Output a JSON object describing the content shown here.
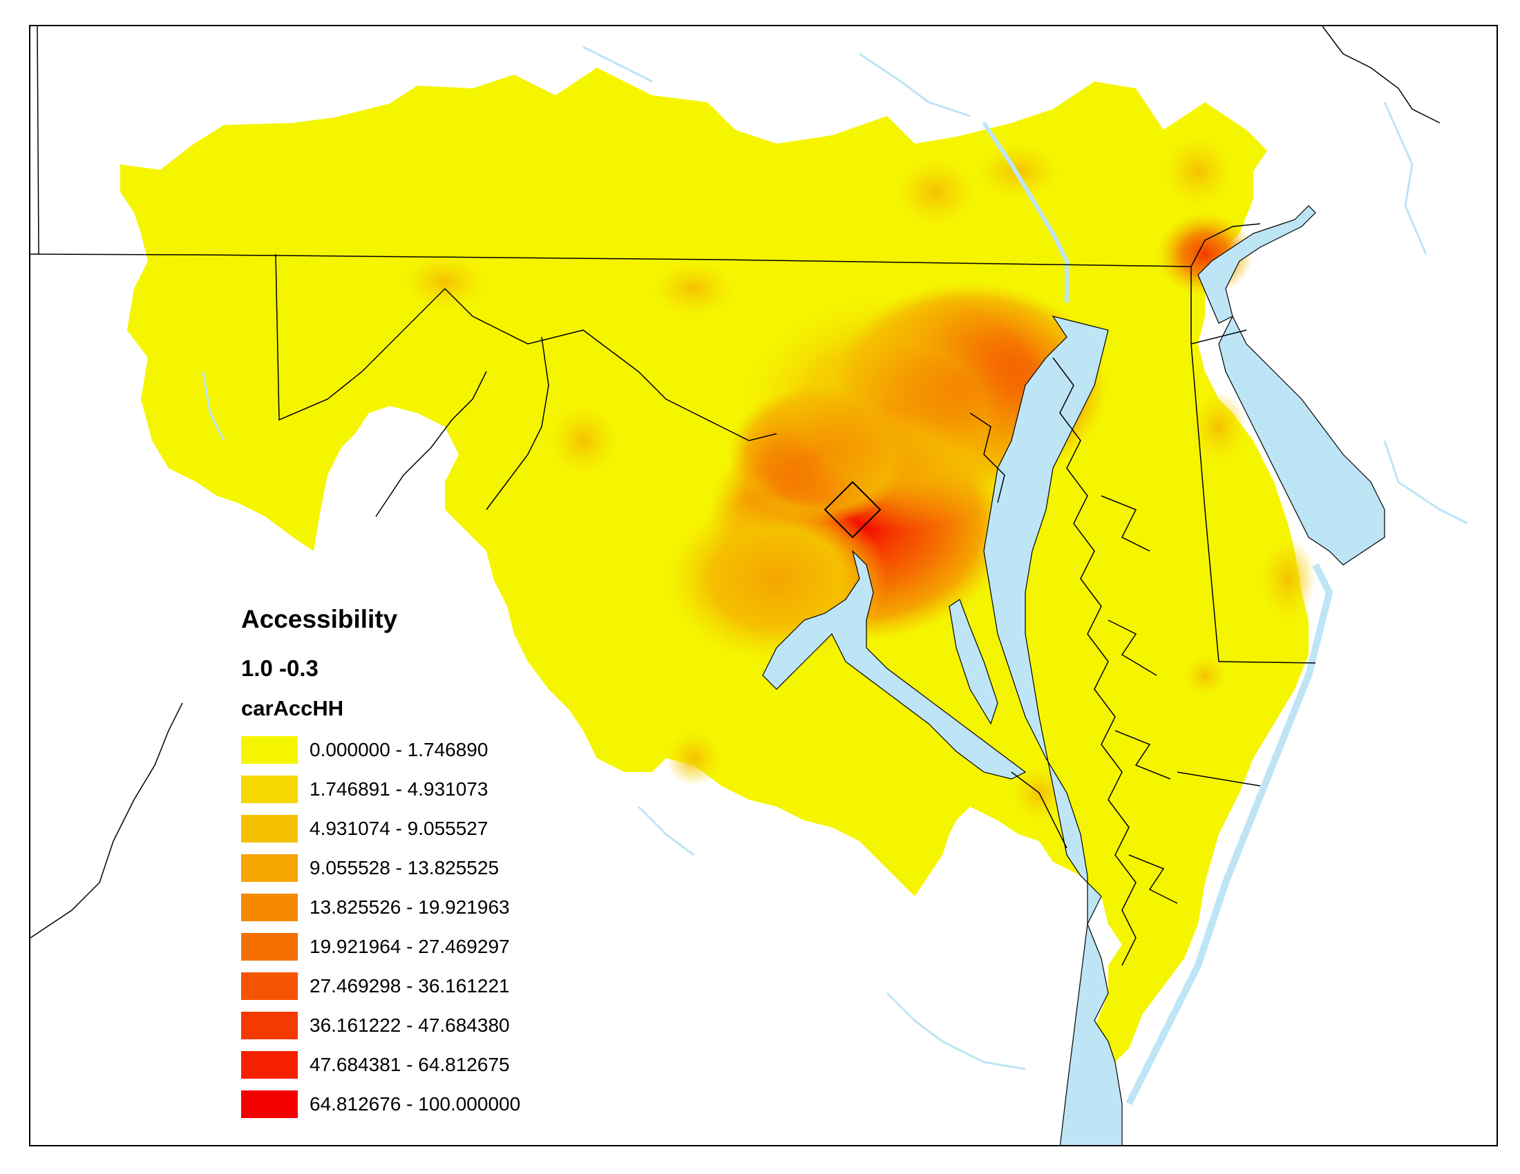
{
  "legend": {
    "title": "Accessibility",
    "subtitle": "1.0 -0.3",
    "field": "carAccHH",
    "classes": [
      {
        "label": "0.000000 - 1.746890",
        "color": "#f5f500"
      },
      {
        "label": "1.746891 - 4.931073",
        "color": "#f5d800"
      },
      {
        "label": "4.931074 - 9.055527",
        "color": "#f5c000"
      },
      {
        "label": "9.055528 - 13.825525",
        "color": "#f5a500"
      },
      {
        "label": "13.825526 - 19.921963",
        "color": "#f58a00"
      },
      {
        "label": "19.921964 - 27.469297",
        "color": "#f57000"
      },
      {
        "label": "27.469298 - 36.161221",
        "color": "#f55500"
      },
      {
        "label": "36.161222 - 47.684380",
        "color": "#f53a00"
      },
      {
        "label": "47.684381 - 64.812675",
        "color": "#f52000"
      },
      {
        "label": "64.812676 - 100.000000",
        "color": "#f50000"
      }
    ]
  },
  "colors": {
    "water": "#bde5f5",
    "boundary": "#000000",
    "background": "#ffffff"
  }
}
